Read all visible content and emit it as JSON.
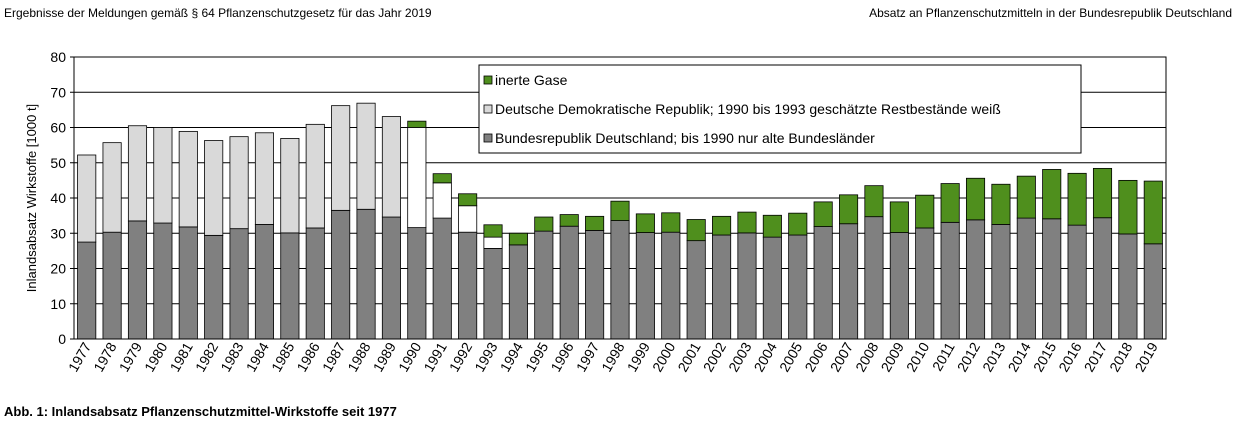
{
  "header": {
    "left": "Ergebnisse der Meldungen gemäß § 64 Pflanzenschutzgesetz für das Jahr 2019",
    "right": "Absatz an Pflanzenschutzmitteln in der Bundesrepublik Deutschland"
  },
  "caption": "Abb. 1: Inlandsabsatz Pflanzenschutzmittel-Wirkstoffe seit 1977",
  "colors": {
    "brd": "#808080",
    "ddr": "#d9d9d9",
    "ddr_white": "#ffffff",
    "inert": "#4f8f1d",
    "grid": "#000000"
  },
  "chart_data": {
    "type": "bar",
    "stacked": true,
    "title": "",
    "xlabel": "",
    "ylabel": "Inlandsabsatz Wirkstoffe [1000 t]",
    "ylim": [
      0,
      80
    ],
    "yticks": [
      "0",
      "10",
      "20",
      "30",
      "40",
      "50",
      "60",
      "70",
      "80"
    ],
    "grid": true,
    "legend_position": "top-right",
    "categories": [
      "1977",
      "1978",
      "1979",
      "1980",
      "1981",
      "1982",
      "1983",
      "1984",
      "1985",
      "1986",
      "1987",
      "1988",
      "1989",
      "1990",
      "1991",
      "1992",
      "1993",
      "1994",
      "1995",
      "1996",
      "1997",
      "1998",
      "1999",
      "2000",
      "2001",
      "2002",
      "2003",
      "2004",
      "2005",
      "2006",
      "2007",
      "2008",
      "2009",
      "2010",
      "2011",
      "2012",
      "2013",
      "2014",
      "2015",
      "2016",
      "2017",
      "2018",
      "2019"
    ],
    "series": [
      {
        "name": "Bundesrepublik Deutschland; bis 1990 nur alte Bundesländer",
        "color_key": "brd",
        "values": [
          27.5,
          30.3,
          33.5,
          32.9,
          31.8,
          29.4,
          31.3,
          32.5,
          30.1,
          31.5,
          36.5,
          36.8,
          34.6,
          31.6,
          34.3,
          30.3,
          25.7,
          26.7,
          30.6,
          32.0,
          30.8,
          33.6,
          30.2,
          30.3,
          27.9,
          29.5,
          30.1,
          28.9,
          29.5,
          31.9,
          32.7,
          34.7,
          30.2,
          31.5,
          33.1,
          33.8,
          32.5,
          34.3,
          34.1,
          32.3,
          34.4,
          29.8,
          27.0
        ]
      },
      {
        "name": "Deutsche Demokratische Republik; 1990 bis 1993 geschätzte Restbestände weiß",
        "color_key": "ddr",
        "white_from_year": "1990",
        "values": [
          24.7,
          25.4,
          27.0,
          27.1,
          27.1,
          26.9,
          26.1,
          26.0,
          26.8,
          29.4,
          29.7,
          30.1,
          28.5,
          28.4,
          10.0,
          7.5,
          3.2,
          0,
          0,
          0,
          0,
          0,
          0,
          0,
          0,
          0,
          0,
          0,
          0,
          0,
          0,
          0,
          0,
          0,
          0,
          0,
          0,
          0,
          0,
          0,
          0,
          0,
          0
        ]
      },
      {
        "name": "inerte Gase",
        "color_key": "inert",
        "values": [
          0,
          0,
          0,
          0,
          0,
          0,
          0,
          0,
          0,
          0,
          0,
          0,
          0,
          1.8,
          2.6,
          3.4,
          3.5,
          3.3,
          4.0,
          3.3,
          4.0,
          5.5,
          5.3,
          5.5,
          6.0,
          5.3,
          5.9,
          6.2,
          6.2,
          7.0,
          8.2,
          8.8,
          8.7,
          9.3,
          11.0,
          11.8,
          11.4,
          11.9,
          14.0,
          14.7,
          14.0,
          15.2,
          17.8
        ]
      }
    ],
    "legend": [
      "inerte Gase",
      "Deutsche Demokratische Republik; 1990 bis 1993 geschätzte Restbestände weiß",
      "Bundesrepublik Deutschland; bis 1990 nur alte Bundesländer"
    ]
  }
}
